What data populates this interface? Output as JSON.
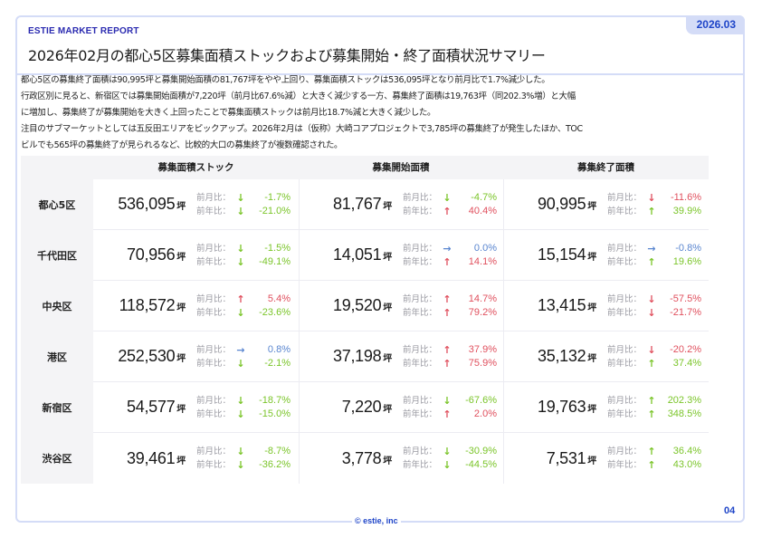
{
  "header": {
    "brand": "ESTIE MARKET REPORT",
    "title": "2026年02月の都心5区募集面積ストックおよび募集開始・終了面積状況サマリー",
    "date_tab": "2026.03"
  },
  "summary": {
    "lines": [
      "都心5区の募集終了面積は90,995坪と募集開始面積の81,767坪をやや上回り、募集面積ストックは536,095坪となり前月比で1.7%減少した。",
      "行政区別に見ると、新宿区では募集開始面積が7,220坪（前月比67.6%減）と大きく減少する一方、募集終了面積は19,763坪（同202.3%増）と大幅",
      "に増加し、募集終了が募集開始を大きく上回ったことで募集面積ストックは前月比18.7%減と大きく減少した。",
      "注目のサブマーケットとしては五反田エリアをピックアップ。2026年2月は（仮称）大崎コアプロジェクトで3,785坪の募集終了が発生したほか、TOC",
      "ビルでも565坪の募集終了が見られるなど、比較的大口の募集終了が複数確認された。"
    ]
  },
  "table": {
    "columns": [
      "募集面積ストック",
      "募集開始面積",
      "募集終了面積"
    ],
    "unit": "坪",
    "mom_label": "前月比：",
    "yoy_label": "前年比：",
    "colors": {
      "green": "#7bc52a",
      "red": "#e0505e",
      "blue": "#5a86d0"
    },
    "rows": [
      {
        "area": "都心5区",
        "cells": [
          {
            "value": "536,095",
            "mom": {
              "arrow": "↓",
              "pct": "-1.7%",
              "color": "green"
            },
            "yoy": {
              "arrow": "↓",
              "pct": "-21.0%",
              "color": "green"
            }
          },
          {
            "value": "81,767",
            "mom": {
              "arrow": "↓",
              "pct": "-4.7%",
              "color": "green"
            },
            "yoy": {
              "arrow": "↑",
              "pct": "40.4%",
              "color": "red"
            }
          },
          {
            "value": "90,995",
            "mom": {
              "arrow": "↓",
              "pct": "-11.6%",
              "color": "red"
            },
            "yoy": {
              "arrow": "↑",
              "pct": "39.9%",
              "color": "green"
            }
          }
        ]
      },
      {
        "area": "千代田区",
        "cells": [
          {
            "value": "70,956",
            "mom": {
              "arrow": "↓",
              "pct": "-1.5%",
              "color": "green"
            },
            "yoy": {
              "arrow": "↓",
              "pct": "-49.1%",
              "color": "green"
            }
          },
          {
            "value": "14,051",
            "mom": {
              "arrow": "→",
              "pct": "0.0%",
              "color": "blue"
            },
            "yoy": {
              "arrow": "↑",
              "pct": "14.1%",
              "color": "red"
            }
          },
          {
            "value": "15,154",
            "mom": {
              "arrow": "→",
              "pct": "-0.8%",
              "color": "blue"
            },
            "yoy": {
              "arrow": "↑",
              "pct": "19.6%",
              "color": "green"
            }
          }
        ]
      },
      {
        "area": "中央区",
        "cells": [
          {
            "value": "118,572",
            "mom": {
              "arrow": "↑",
              "pct": "5.4%",
              "color": "red"
            },
            "yoy": {
              "arrow": "↓",
              "pct": "-23.6%",
              "color": "green"
            }
          },
          {
            "value": "19,520",
            "mom": {
              "arrow": "↑",
              "pct": "14.7%",
              "color": "red"
            },
            "yoy": {
              "arrow": "↑",
              "pct": "79.2%",
              "color": "red"
            }
          },
          {
            "value": "13,415",
            "mom": {
              "arrow": "↓",
              "pct": "-57.5%",
              "color": "red"
            },
            "yoy": {
              "arrow": "↓",
              "pct": "-21.7%",
              "color": "red"
            }
          }
        ]
      },
      {
        "area": "港区",
        "cells": [
          {
            "value": "252,530",
            "mom": {
              "arrow": "→",
              "pct": "0.8%",
              "color": "blue"
            },
            "yoy": {
              "arrow": "↓",
              "pct": "-2.1%",
              "color": "green"
            }
          },
          {
            "value": "37,198",
            "mom": {
              "arrow": "↑",
              "pct": "37.9%",
              "color": "red"
            },
            "yoy": {
              "arrow": "↑",
              "pct": "75.9%",
              "color": "red"
            }
          },
          {
            "value": "35,132",
            "mom": {
              "arrow": "↓",
              "pct": "-20.2%",
              "color": "red"
            },
            "yoy": {
              "arrow": "↑",
              "pct": "37.4%",
              "color": "green"
            }
          }
        ]
      },
      {
        "area": "新宿区",
        "cells": [
          {
            "value": "54,577",
            "mom": {
              "arrow": "↓",
              "pct": "-18.7%",
              "color": "green"
            },
            "yoy": {
              "arrow": "↓",
              "pct": "-15.0%",
              "color": "green"
            }
          },
          {
            "value": "7,220",
            "mom": {
              "arrow": "↓",
              "pct": "-67.6%",
              "color": "green"
            },
            "yoy": {
              "arrow": "↑",
              "pct": "2.0%",
              "color": "red"
            }
          },
          {
            "value": "19,763",
            "mom": {
              "arrow": "↑",
              "pct": "202.3%",
              "color": "green"
            },
            "yoy": {
              "arrow": "↑",
              "pct": "348.5%",
              "color": "green"
            }
          }
        ]
      },
      {
        "area": "渋谷区",
        "cells": [
          {
            "value": "39,461",
            "mom": {
              "arrow": "↓",
              "pct": "-8.7%",
              "color": "green"
            },
            "yoy": {
              "arrow": "↓",
              "pct": "-36.2%",
              "color": "green"
            }
          },
          {
            "value": "3,778",
            "mom": {
              "arrow": "↓",
              "pct": "-30.9%",
              "color": "green"
            },
            "yoy": {
              "arrow": "↓",
              "pct": "-44.5%",
              "color": "green"
            }
          },
          {
            "value": "7,531",
            "mom": {
              "arrow": "↑",
              "pct": "36.4%",
              "color": "green"
            },
            "yoy": {
              "arrow": "↑",
              "pct": "43.0%",
              "color": "green"
            }
          }
        ]
      }
    ]
  },
  "footer": {
    "copyright": "© estie, inc",
    "page_number": "04"
  }
}
